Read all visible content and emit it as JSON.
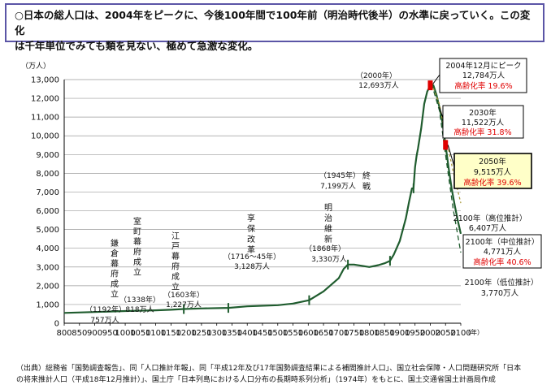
{
  "headline": {
    "line1": "○日本の総人口は、2004年をピークに、今後100年間で100年前（明治時代後半）の水準に戻っていく。この変化",
    "line2": "は千年単位でみても類を見ない、極めて急激な変化。"
  },
  "source": {
    "line1": "（出典）総務省「国勢調査報告」、同「人口推計年報」、同「平成12年及び17年国勢調査結果による補間推計人口」、国立社会保障・人口問題研究所「日本",
    "line2": "の将来推計人口（平成18年12月推計）」、国土庁「日本列島における人口分布の長期時系列分析」（1974年）をもとに、国土交通省国土計画局作成"
  },
  "colors": {
    "line": "#1f5c2e",
    "frame": "#5b55a6",
    "highlight_box": "#ffffc8",
    "peak_marker": "#e00000",
    "aging_text": "#e00000",
    "high_projection": "#a89a3a"
  },
  "chart_data": {
    "type": "line",
    "y_unit_label": "（万人）",
    "x_unit_label": "（年）",
    "xlim": [
      800,
      2100
    ],
    "ylim": [
      0,
      13000
    ],
    "x_ticks": [
      800,
      850,
      900,
      950,
      1000,
      1050,
      1100,
      1150,
      1200,
      1250,
      1300,
      1350,
      1400,
      1450,
      1500,
      1550,
      1600,
      1650,
      1700,
      1750,
      1800,
      1850,
      1900,
      1950,
      2000,
      2050,
      2100
    ],
    "y_ticks": [
      0,
      1000,
      2000,
      3000,
      4000,
      5000,
      6000,
      7000,
      8000,
      9000,
      10000,
      11000,
      12000,
      13000
    ],
    "grid": "horizontal",
    "series": [
      {
        "role": "actual",
        "x": [
          800,
          900,
          1000,
          1100,
          1150,
          1192,
          1250,
          1338,
          1400,
          1500,
          1550,
          1603,
          1650,
          1700,
          1716,
          1730,
          1750,
          1780,
          1800,
          1830,
          1850,
          1868,
          1880,
          1900,
          1920,
          1930,
          1940,
          1945,
          1950,
          1955,
          1960,
          1970,
          1980,
          1990,
          2000,
          2004
        ],
        "y": [
          550,
          600,
          650,
          690,
          720,
          757,
          790,
          818,
          900,
          960,
          1050,
          1227,
          1700,
          2400,
          2900,
          3128,
          3130,
          3050,
          3000,
          3100,
          3200,
          3330,
          3650,
          4385,
          5596,
          6445,
          7193,
          7199,
          8320,
          8928,
          9342,
          10372,
          11706,
          12361,
          12693,
          12784
        ]
      },
      {
        "role": "projection-medium",
        "x": [
          2004,
          2010,
          2020,
          2030,
          2040,
          2050,
          2060,
          2070,
          2080,
          2090,
          2100
        ],
        "y": [
          12784,
          12700,
          12200,
          11522,
          10700,
          9515,
          8300,
          7200,
          6300,
          5500,
          4771
        ]
      },
      {
        "role": "projection-high",
        "x": [
          2004,
          2030,
          2050,
          2075,
          2100
        ],
        "y": [
          12784,
          11700,
          10000,
          8100,
          6407
        ]
      },
      {
        "role": "projection-low",
        "x": [
          2004,
          2030,
          2050,
          2075,
          2100
        ],
        "y": [
          12784,
          11350,
          9000,
          6100,
          3770
        ]
      }
    ],
    "markers": [
      {
        "x": 1192,
        "y": 757
      },
      {
        "x": 1338,
        "y": 818
      },
      {
        "x": 1603,
        "y": 1227
      },
      {
        "x": 1730,
        "y": 3128
      },
      {
        "x": 1868,
        "y": 3330
      },
      {
        "x": 1945,
        "y": 7199
      }
    ],
    "peak_markers": [
      {
        "x": 2000,
        "y": 12693
      },
      {
        "x": 2050,
        "y": 9515
      }
    ],
    "annotations": {
      "kamakura": {
        "chars": [
          "鎌",
          "倉",
          "幕",
          "府",
          "成",
          "立"
        ],
        "year": "（1192年）",
        "value": "757万人"
      },
      "muromachi": {
        "chars": [
          "室",
          "町",
          "幕",
          "府",
          "成",
          "立"
        ],
        "year": "（1338年）",
        "value": "818万人"
      },
      "edo": {
        "chars": [
          "江",
          "戸",
          "幕",
          "府",
          "成",
          "立"
        ],
        "year": "（1603年）",
        "value": "1,227万人"
      },
      "kyoho": {
        "chars": [
          "享",
          "保",
          "改",
          "革"
        ],
        "year": "（1716～45年）",
        "value": "3,128万人"
      },
      "meiji": {
        "chars": [
          "明",
          "治",
          "維",
          "新"
        ],
        "year": "（1868年）",
        "value": "3,330万人"
      },
      "war_end": {
        "chars": [
          "終",
          "戦"
        ],
        "year": "（1945年）",
        "value": "7,199万人"
      },
      "y2000": {
        "year": "（2000年）",
        "value": "12,693万人"
      }
    },
    "callouts": {
      "peak": {
        "line1": "2004年12月にピーク",
        "line2": "12,784万人",
        "aging": "高齢化率 19.6%"
      },
      "y2030": {
        "line1": "2030年",
        "line2": "11,522万人",
        "aging": "高齢化率 31.8%"
      },
      "y2050": {
        "line1": "2050年",
        "line2": "9,515万人",
        "aging": "高齢化率 39.6%"
      },
      "high2100": {
        "line1": "2100年（高位推計）",
        "line2": "6,407万人"
      },
      "mid2100": {
        "line1": "2100年（中位推計）",
        "line2": "4,771万人",
        "aging": "高齢化率 40.6%"
      },
      "low2100": {
        "line1": "2100年（低位推計）",
        "line2": "3,770万人"
      }
    }
  }
}
